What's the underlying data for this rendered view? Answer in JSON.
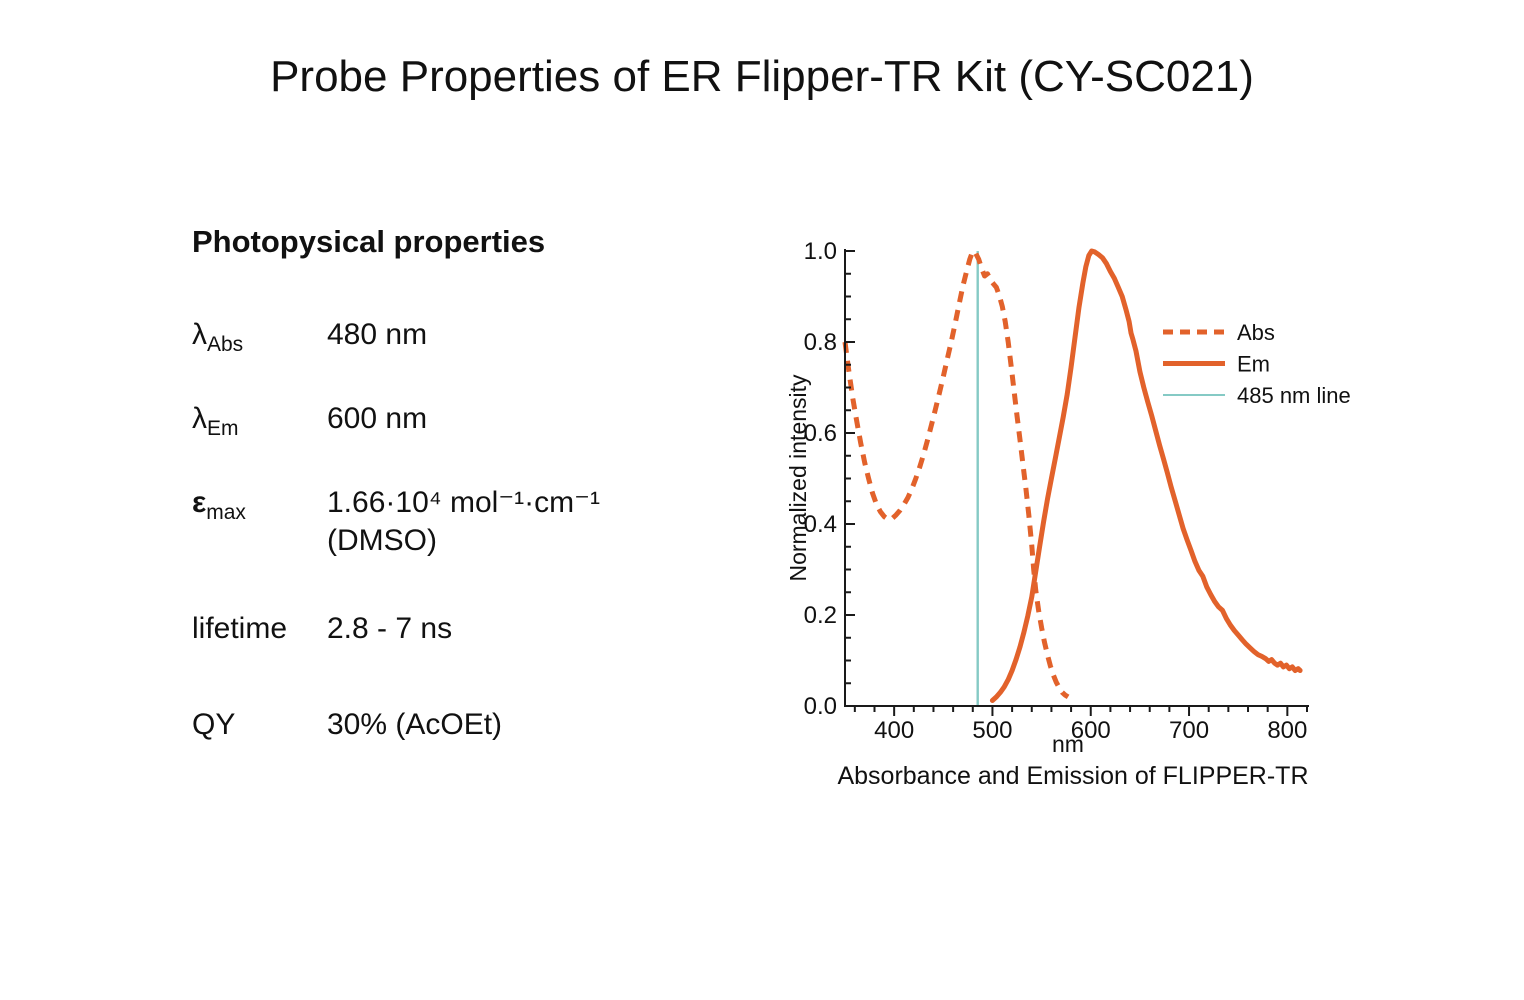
{
  "page": {
    "title": "Probe Properties of ER Flipper-TR Kit (CY-SC021)"
  },
  "properties": {
    "heading": "Photopysical properties",
    "rows": [
      {
        "symbol": "λ",
        "sub": "Abs",
        "value": "480 nm"
      },
      {
        "symbol": "λ",
        "sub": "Em",
        "value": "600 nm"
      },
      {
        "symbol": "ε",
        "sub": "max",
        "value": "1.66·10⁴ mol⁻¹·cm⁻¹",
        "value2": "(DMSO)"
      },
      {
        "symbol": "lifetime",
        "sub": "",
        "value": "2.8 - 7 ns"
      },
      {
        "symbol": "QY",
        "sub": "",
        "value": "30% (AcOEt)"
      }
    ]
  },
  "chart_data": {
    "type": "line",
    "title": "",
    "caption": "Absorbance and Emission of FLIPPER-TR",
    "xlabel": "nm",
    "ylabel": "Normalized intensity",
    "xlim": [
      350,
      820
    ],
    "ylim": [
      0,
      1.0
    ],
    "x_major_ticks": [
      400,
      500,
      600,
      700,
      800
    ],
    "x_minor_step": 20,
    "y_major_ticks": [
      0.0,
      0.2,
      0.4,
      0.6,
      0.8,
      1.0
    ],
    "y_minor_step": 0.05,
    "grid": false,
    "colors": {
      "series": "#e2622b",
      "ref_line": "#85cac5",
      "axis": "#1a1a1a"
    },
    "vline": {
      "x": 485,
      "label": "485 nm line"
    },
    "legend": {
      "position": "inside-upper-right",
      "entries": [
        {
          "label": "Abs",
          "style": "dashed"
        },
        {
          "label": "Em",
          "style": "solid"
        },
        {
          "label": "485 nm line",
          "style": "ref"
        }
      ]
    },
    "series": [
      {
        "name": "Abs",
        "style": "dashed",
        "points": [
          [
            350,
            0.8
          ],
          [
            354,
            0.735
          ],
          [
            358,
            0.675
          ],
          [
            362,
            0.625
          ],
          [
            366,
            0.578
          ],
          [
            370,
            0.535
          ],
          [
            374,
            0.5
          ],
          [
            378,
            0.468
          ],
          [
            382,
            0.443
          ],
          [
            386,
            0.427
          ],
          [
            390,
            0.416
          ],
          [
            394,
            0.41
          ],
          [
            398,
            0.412
          ],
          [
            402,
            0.42
          ],
          [
            406,
            0.43
          ],
          [
            410,
            0.443
          ],
          [
            414,
            0.458
          ],
          [
            418,
            0.477
          ],
          [
            422,
            0.5
          ],
          [
            426,
            0.525
          ],
          [
            430,
            0.553
          ],
          [
            434,
            0.585
          ],
          [
            438,
            0.618
          ],
          [
            442,
            0.652
          ],
          [
            446,
            0.688
          ],
          [
            450,
            0.724
          ],
          [
            454,
            0.762
          ],
          [
            458,
            0.8
          ],
          [
            462,
            0.84
          ],
          [
            466,
            0.882
          ],
          [
            470,
            0.924
          ],
          [
            474,
            0.958
          ],
          [
            477,
            0.982
          ],
          [
            480,
            1.0
          ],
          [
            483,
            0.995
          ],
          [
            486,
            0.982
          ],
          [
            489,
            0.962
          ],
          [
            492,
            0.945
          ],
          [
            495,
            0.95
          ],
          [
            498,
            0.936
          ],
          [
            501,
            0.928
          ],
          [
            504,
            0.92
          ],
          [
            507,
            0.902
          ],
          [
            510,
            0.878
          ],
          [
            513,
            0.845
          ],
          [
            516,
            0.8
          ],
          [
            519,
            0.748
          ],
          [
            522,
            0.692
          ],
          [
            525,
            0.638
          ],
          [
            528,
            0.585
          ],
          [
            531,
            0.532
          ],
          [
            534,
            0.478
          ],
          [
            537,
            0.42
          ],
          [
            540,
            0.352
          ],
          [
            542,
            0.3
          ],
          [
            544,
            0.255
          ],
          [
            547,
            0.21
          ],
          [
            550,
            0.172
          ],
          [
            553,
            0.14
          ],
          [
            556,
            0.112
          ],
          [
            559,
            0.088
          ],
          [
            562,
            0.068
          ],
          [
            565,
            0.052
          ],
          [
            568,
            0.04
          ],
          [
            571,
            0.03
          ],
          [
            574,
            0.024
          ],
          [
            577,
            0.02
          ]
        ]
      },
      {
        "name": "Em",
        "style": "solid",
        "points": [
          [
            500,
            0.012
          ],
          [
            504,
            0.02
          ],
          [
            508,
            0.03
          ],
          [
            512,
            0.042
          ],
          [
            516,
            0.058
          ],
          [
            520,
            0.078
          ],
          [
            524,
            0.102
          ],
          [
            528,
            0.13
          ],
          [
            532,
            0.162
          ],
          [
            536,
            0.198
          ],
          [
            540,
            0.24
          ],
          [
            544,
            0.295
          ],
          [
            548,
            0.35
          ],
          [
            552,
            0.405
          ],
          [
            556,
            0.455
          ],
          [
            560,
            0.5
          ],
          [
            564,
            0.545
          ],
          [
            568,
            0.59
          ],
          [
            572,
            0.635
          ],
          [
            576,
            0.685
          ],
          [
            580,
            0.745
          ],
          [
            584,
            0.81
          ],
          [
            588,
            0.875
          ],
          [
            592,
            0.93
          ],
          [
            595,
            0.965
          ],
          [
            598,
            0.99
          ],
          [
            601,
            1.0
          ],
          [
            604,
            0.998
          ],
          [
            608,
            0.992
          ],
          [
            612,
            0.985
          ],
          [
            616,
            0.972
          ],
          [
            620,
            0.955
          ],
          [
            624,
            0.94
          ],
          [
            628,
            0.92
          ],
          [
            632,
            0.9
          ],
          [
            636,
            0.87
          ],
          [
            639,
            0.845
          ],
          [
            641,
            0.82
          ],
          [
            643,
            0.805
          ],
          [
            646,
            0.78
          ],
          [
            650,
            0.735
          ],
          [
            654,
            0.7
          ],
          [
            658,
            0.668
          ],
          [
            662,
            0.638
          ],
          [
            666,
            0.606
          ],
          [
            670,
            0.573
          ],
          [
            674,
            0.543
          ],
          [
            678,
            0.512
          ],
          [
            682,
            0.48
          ],
          [
            686,
            0.45
          ],
          [
            690,
            0.42
          ],
          [
            694,
            0.39
          ],
          [
            698,
            0.365
          ],
          [
            702,
            0.342
          ],
          [
            706,
            0.318
          ],
          [
            710,
            0.298
          ],
          [
            714,
            0.285
          ],
          [
            718,
            0.262
          ],
          [
            722,
            0.245
          ],
          [
            726,
            0.23
          ],
          [
            730,
            0.218
          ],
          [
            734,
            0.21
          ],
          [
            738,
            0.192
          ],
          [
            742,
            0.178
          ],
          [
            746,
            0.166
          ],
          [
            750,
            0.156
          ],
          [
            754,
            0.146
          ],
          [
            758,
            0.136
          ],
          [
            762,
            0.128
          ],
          [
            766,
            0.12
          ],
          [
            770,
            0.113
          ],
          [
            774,
            0.109
          ],
          [
            778,
            0.104
          ],
          [
            781,
            0.098
          ],
          [
            784,
            0.102
          ],
          [
            787,
            0.094
          ],
          [
            790,
            0.09
          ],
          [
            793,
            0.094
          ],
          [
            796,
            0.086
          ],
          [
            799,
            0.09
          ],
          [
            802,
            0.082
          ],
          [
            805,
            0.086
          ],
          [
            808,
            0.078
          ],
          [
            811,
            0.082
          ],
          [
            813,
            0.078
          ]
        ]
      }
    ]
  }
}
